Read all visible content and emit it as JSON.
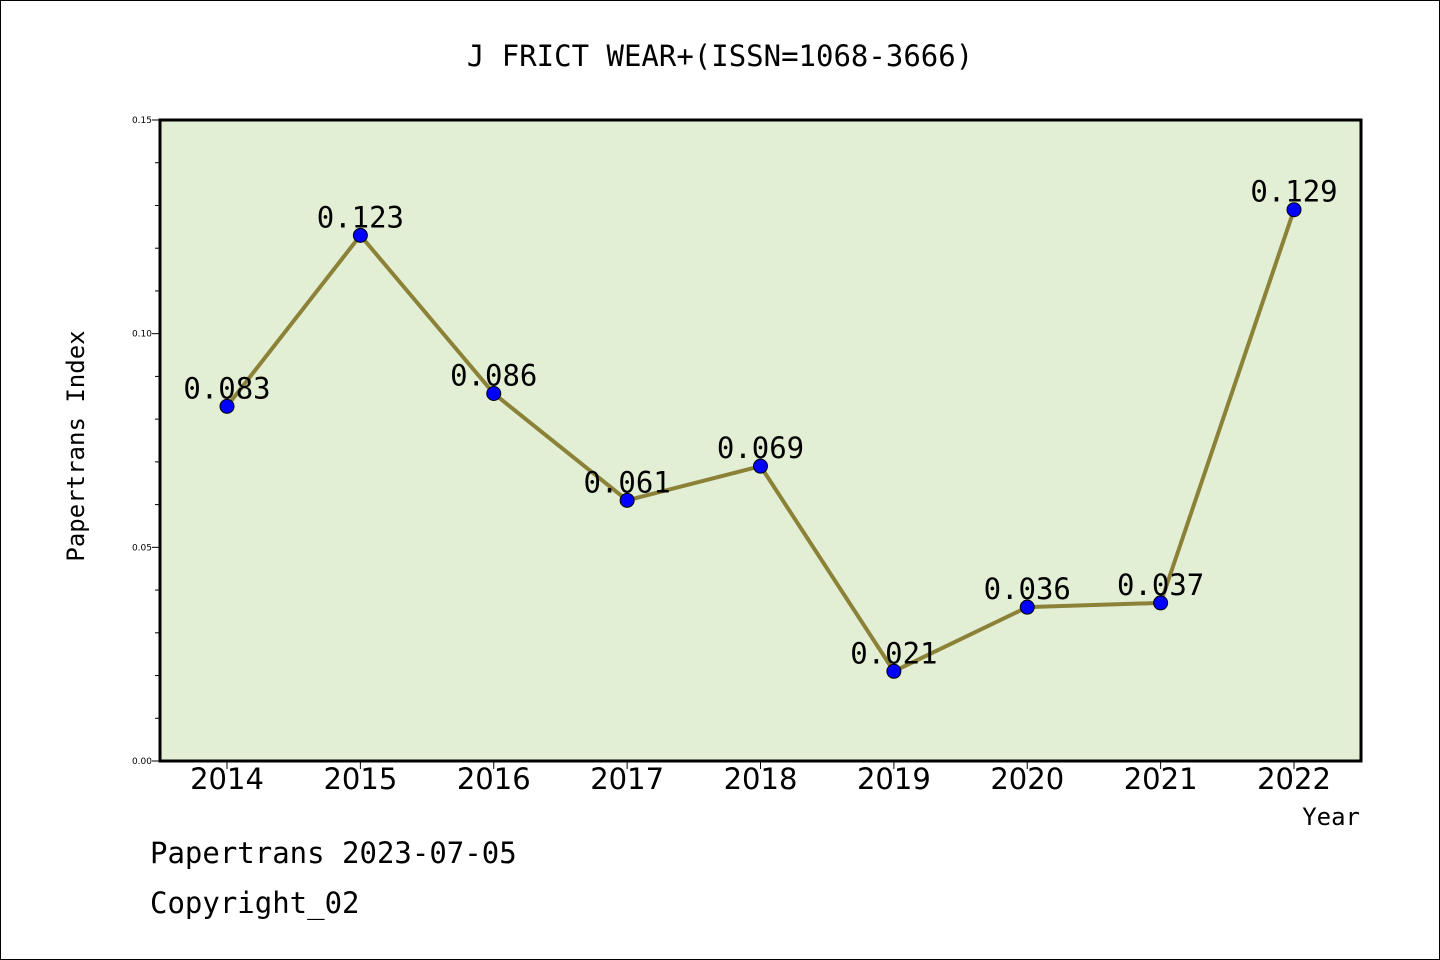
{
  "chart_data": {
    "type": "line",
    "title": "J FRICT WEAR+(ISSN=1068-3666)",
    "xlabel": "Year",
    "ylabel": "Papertrans Index",
    "categories": [
      "2014",
      "2015",
      "2016",
      "2017",
      "2018",
      "2019",
      "2020",
      "2021",
      "2022"
    ],
    "series": [
      {
        "values": [
          0.083,
          0.123,
          0.086,
          0.061,
          0.069,
          0.021,
          0.036,
          0.037,
          0.129
        ],
        "data_labels": [
          "0.083",
          "0.123",
          "0.086",
          "0.061",
          "0.069",
          "0.021",
          "0.036",
          "0.037",
          "0.129"
        ],
        "line_color": "#8B8237",
        "marker_color": "#0000FF"
      }
    ],
    "ylim": [
      0,
      0.15
    ],
    "yticks": [
      "0.00",
      "0.05",
      "0.10",
      "0.15"
    ],
    "plot_background": "#E2EFD5",
    "grid": false,
    "legend": "none"
  },
  "footer": {
    "line1": "Papertrans 2023-07-05",
    "line2": "Copyright_02"
  }
}
